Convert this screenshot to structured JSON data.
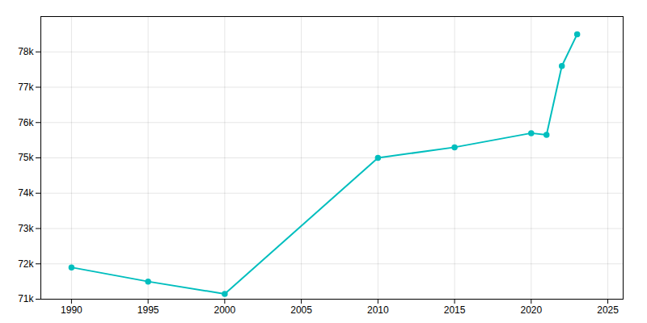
{
  "chart_data": {
    "type": "line",
    "x": [
      1990,
      1995,
      2000,
      2010,
      2015,
      2020,
      2021,
      2022,
      2023
    ],
    "values": [
      71900,
      71500,
      71150,
      75000,
      75300,
      75700,
      75650,
      77600,
      78500
    ],
    "color": "#00BEBE",
    "marker": "circle",
    "xlim": [
      1988,
      2026
    ],
    "xticks": [
      1990,
      1995,
      2000,
      2005,
      2010,
      2015,
      2020,
      2025
    ],
    "ylim": [
      71000,
      79000
    ],
    "yticks": [
      {
        "value": 71000,
        "label": "71k"
      },
      {
        "value": 72000,
        "label": "72k"
      },
      {
        "value": 73000,
        "label": "73k"
      },
      {
        "value": 74000,
        "label": "74k"
      },
      {
        "value": 75000,
        "label": "75k"
      },
      {
        "value": 76000,
        "label": "76k"
      },
      {
        "value": 77000,
        "label": "77k"
      },
      {
        "value": 78000,
        "label": "78k"
      }
    ],
    "grid": true
  }
}
